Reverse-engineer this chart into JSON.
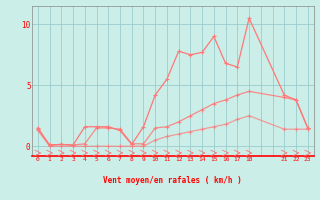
{
  "background_color": "#cceee8",
  "grid_color": "#99cccc",
  "line_color": "#ff7777",
  "xlabel": "Vent moyen/en rafales ( km/h )",
  "ylim": [
    -0.8,
    11.5
  ],
  "xlim": [
    -0.5,
    23.5
  ],
  "yticks": [
    0,
    5,
    10
  ],
  "xtick_labels": [
    "0",
    "1",
    "2",
    "3",
    "4",
    "5",
    "6",
    "7",
    "8",
    "9",
    "10",
    "11",
    "12",
    "13",
    "14",
    "15",
    "16",
    "17",
    "18",
    "",
    "",
    "21",
    "22",
    "23"
  ],
  "xtick_positions": [
    0,
    1,
    2,
    3,
    4,
    5,
    6,
    7,
    8,
    9,
    10,
    11,
    12,
    13,
    14,
    15,
    16,
    17,
    18,
    19,
    20,
    21,
    22,
    23
  ],
  "x_positions": [
    0,
    1,
    2,
    3,
    4,
    5,
    6,
    7,
    8,
    9,
    10,
    11,
    12,
    13,
    14,
    15,
    16,
    17,
    18,
    21,
    22,
    23
  ],
  "wind_gust_y": [
    1.5,
    0.1,
    0.15,
    0.1,
    1.6,
    1.6,
    1.6,
    1.3,
    0.15,
    1.6,
    4.2,
    5.5,
    7.8,
    7.5,
    7.7,
    9.0,
    6.8,
    6.5,
    10.5,
    4.2,
    3.8,
    1.5
  ],
  "wind_avg_y": [
    1.4,
    0.1,
    0.15,
    0.1,
    0.2,
    1.5,
    1.5,
    1.4,
    0.2,
    0.2,
    1.5,
    1.6,
    2.0,
    2.5,
    3.0,
    3.5,
    3.8,
    4.2,
    4.5,
    4.0,
    3.8,
    1.5
  ],
  "wind_min_y": [
    1.3,
    0.0,
    0.0,
    0.0,
    0.0,
    0.0,
    0.0,
    0.0,
    0.0,
    0.0,
    0.5,
    0.8,
    1.0,
    1.2,
    1.4,
    1.6,
    1.8,
    2.2,
    2.5,
    1.4,
    1.4,
    1.4
  ]
}
